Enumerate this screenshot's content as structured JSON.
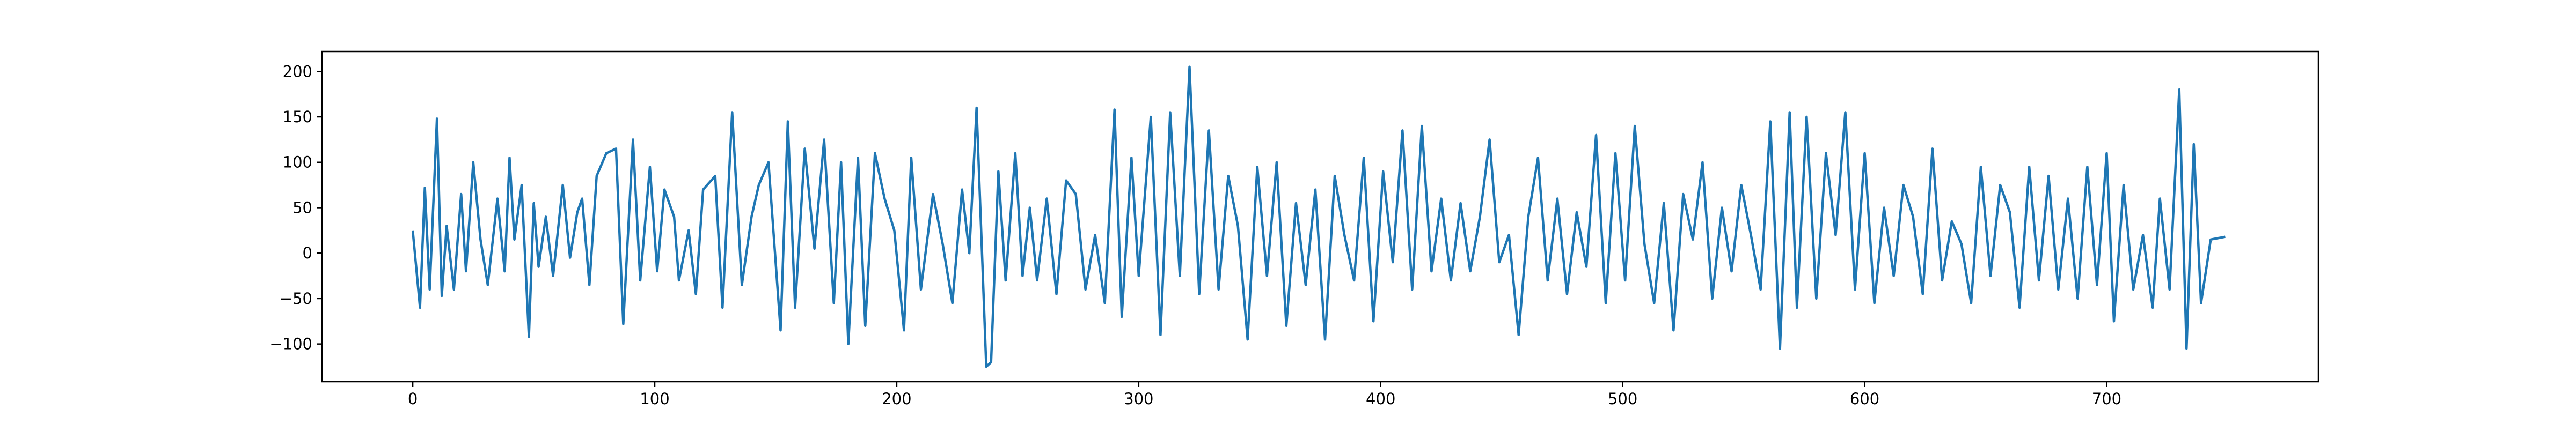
{
  "chart_data": {
    "type": "line",
    "title": "",
    "xlabel": "",
    "ylabel": "",
    "xlim": [
      -37.5,
      787.5
    ],
    "ylim": [
      -141.5,
      222
    ],
    "xticks": [
      0,
      100,
      200,
      300,
      400,
      500,
      600,
      700
    ],
    "yticks": [
      -100,
      -50,
      0,
      50,
      100,
      150,
      200
    ],
    "grid": false,
    "legend": "none",
    "line_color": "#1f77b4",
    "num_points": 750,
    "x": [
      0,
      749
    ],
    "anchors": [
      [
        0,
        25
      ],
      [
        3,
        -60
      ],
      [
        5,
        72
      ],
      [
        7,
        -40
      ],
      [
        10,
        148
      ],
      [
        12,
        -47
      ],
      [
        14,
        30
      ],
      [
        17,
        -40
      ],
      [
        20,
        65
      ],
      [
        22,
        -20
      ],
      [
        25,
        100
      ],
      [
        28,
        15
      ],
      [
        31,
        -35
      ],
      [
        35,
        60
      ],
      [
        38,
        -20
      ],
      [
        40,
        105
      ],
      [
        42,
        15
      ],
      [
        45,
        75
      ],
      [
        48,
        -92
      ],
      [
        50,
        55
      ],
      [
        52,
        -15
      ],
      [
        55,
        40
      ],
      [
        58,
        -25
      ],
      [
        62,
        75
      ],
      [
        65,
        -5
      ],
      [
        68,
        45
      ],
      [
        70,
        60
      ],
      [
        73,
        -35
      ],
      [
        76,
        85
      ],
      [
        80,
        110
      ],
      [
        84,
        115
      ],
      [
        87,
        -78
      ],
      [
        91,
        125
      ],
      [
        94,
        -30
      ],
      [
        98,
        95
      ],
      [
        101,
        -20
      ],
      [
        104,
        70
      ],
      [
        108,
        40
      ],
      [
        110,
        -30
      ],
      [
        114,
        25
      ],
      [
        117,
        -45
      ],
      [
        120,
        70
      ],
      [
        125,
        85
      ],
      [
        128,
        -60
      ],
      [
        132,
        155
      ],
      [
        136,
        -35
      ],
      [
        140,
        40
      ],
      [
        143,
        75
      ],
      [
        147,
        100
      ],
      [
        152,
        -85
      ],
      [
        155,
        145
      ],
      [
        158,
        -60
      ],
      [
        162,
        115
      ],
      [
        166,
        5
      ],
      [
        170,
        125
      ],
      [
        174,
        -55
      ],
      [
        177,
        100
      ],
      [
        180,
        -100
      ],
      [
        184,
        105
      ],
      [
        187,
        -80
      ],
      [
        191,
        110
      ],
      [
        195,
        60
      ],
      [
        199,
        25
      ],
      [
        203,
        -85
      ],
      [
        206,
        105
      ],
      [
        210,
        -40
      ],
      [
        215,
        65
      ],
      [
        219,
        10
      ],
      [
        223,
        -55
      ],
      [
        227,
        70
      ],
      [
        230,
        0
      ],
      [
        233,
        160
      ],
      [
        237,
        -125
      ],
      [
        239,
        -120
      ],
      [
        242,
        90
      ],
      [
        245,
        -30
      ],
      [
        249,
        110
      ],
      [
        252,
        -25
      ],
      [
        255,
        50
      ],
      [
        258,
        -30
      ],
      [
        262,
        60
      ],
      [
        266,
        -45
      ],
      [
        270,
        80
      ],
      [
        274,
        65
      ],
      [
        278,
        -40
      ],
      [
        282,
        20
      ],
      [
        286,
        -55
      ],
      [
        290,
        158
      ],
      [
        293,
        -70
      ],
      [
        297,
        105
      ],
      [
        300,
        -25
      ],
      [
        305,
        150
      ],
      [
        309,
        -90
      ],
      [
        313,
        155
      ],
      [
        317,
        -25
      ],
      [
        321,
        205
      ],
      [
        325,
        -45
      ],
      [
        329,
        135
      ],
      [
        333,
        -40
      ],
      [
        337,
        85
      ],
      [
        341,
        30
      ],
      [
        345,
        -95
      ],
      [
        349,
        95
      ],
      [
        353,
        -25
      ],
      [
        357,
        100
      ],
      [
        361,
        -80
      ],
      [
        365,
        55
      ],
      [
        369,
        -35
      ],
      [
        373,
        70
      ],
      [
        377,
        -95
      ],
      [
        381,
        85
      ],
      [
        385,
        20
      ],
      [
        389,
        -30
      ],
      [
        393,
        105
      ],
      [
        397,
        -75
      ],
      [
        401,
        90
      ],
      [
        405,
        -10
      ],
      [
        409,
        135
      ],
      [
        413,
        -40
      ],
      [
        417,
        140
      ],
      [
        421,
        -20
      ],
      [
        425,
        60
      ],
      [
        429,
        -30
      ],
      [
        433,
        55
      ],
      [
        437,
        -20
      ],
      [
        441,
        40
      ],
      [
        445,
        125
      ],
      [
        449,
        -10
      ],
      [
        453,
        20
      ],
      [
        457,
        -90
      ],
      [
        461,
        40
      ],
      [
        465,
        105
      ],
      [
        469,
        -30
      ],
      [
        473,
        60
      ],
      [
        477,
        -45
      ],
      [
        481,
        45
      ],
      [
        485,
        -15
      ],
      [
        489,
        130
      ],
      [
        493,
        -55
      ],
      [
        497,
        110
      ],
      [
        501,
        -30
      ],
      [
        505,
        140
      ],
      [
        509,
        10
      ],
      [
        513,
        -55
      ],
      [
        517,
        55
      ],
      [
        521,
        -85
      ],
      [
        525,
        65
      ],
      [
        529,
        15
      ],
      [
        533,
        100
      ],
      [
        537,
        -50
      ],
      [
        541,
        50
      ],
      [
        545,
        -20
      ],
      [
        549,
        75
      ],
      [
        553,
        20
      ],
      [
        557,
        -40
      ],
      [
        561,
        145
      ],
      [
        565,
        -105
      ],
      [
        569,
        155
      ],
      [
        572,
        -60
      ],
      [
        576,
        150
      ],
      [
        580,
        -50
      ],
      [
        584,
        110
      ],
      [
        588,
        20
      ],
      [
        592,
        155
      ],
      [
        596,
        -40
      ],
      [
        600,
        110
      ],
      [
        604,
        -55
      ],
      [
        608,
        50
      ],
      [
        612,
        -25
      ],
      [
        616,
        75
      ],
      [
        620,
        40
      ],
      [
        624,
        -45
      ],
      [
        628,
        115
      ],
      [
        632,
        -30
      ],
      [
        636,
        35
      ],
      [
        640,
        10
      ],
      [
        644,
        -55
      ],
      [
        648,
        95
      ],
      [
        652,
        -25
      ],
      [
        656,
        75
      ],
      [
        660,
        45
      ],
      [
        664,
        -60
      ],
      [
        668,
        95
      ],
      [
        672,
        -30
      ],
      [
        676,
        85
      ],
      [
        680,
        -40
      ],
      [
        684,
        60
      ],
      [
        688,
        -50
      ],
      [
        692,
        95
      ],
      [
        696,
        -35
      ],
      [
        700,
        110
      ],
      [
        703,
        -75
      ],
      [
        707,
        75
      ],
      [
        711,
        -40
      ],
      [
        715,
        20
      ],
      [
        719,
        -60
      ],
      [
        722,
        60
      ],
      [
        726,
        -40
      ],
      [
        730,
        180
      ],
      [
        733,
        -105
      ],
      [
        736,
        120
      ],
      [
        739,
        -55
      ],
      [
        743,
        15
      ],
      [
        749,
        18
      ]
    ]
  }
}
